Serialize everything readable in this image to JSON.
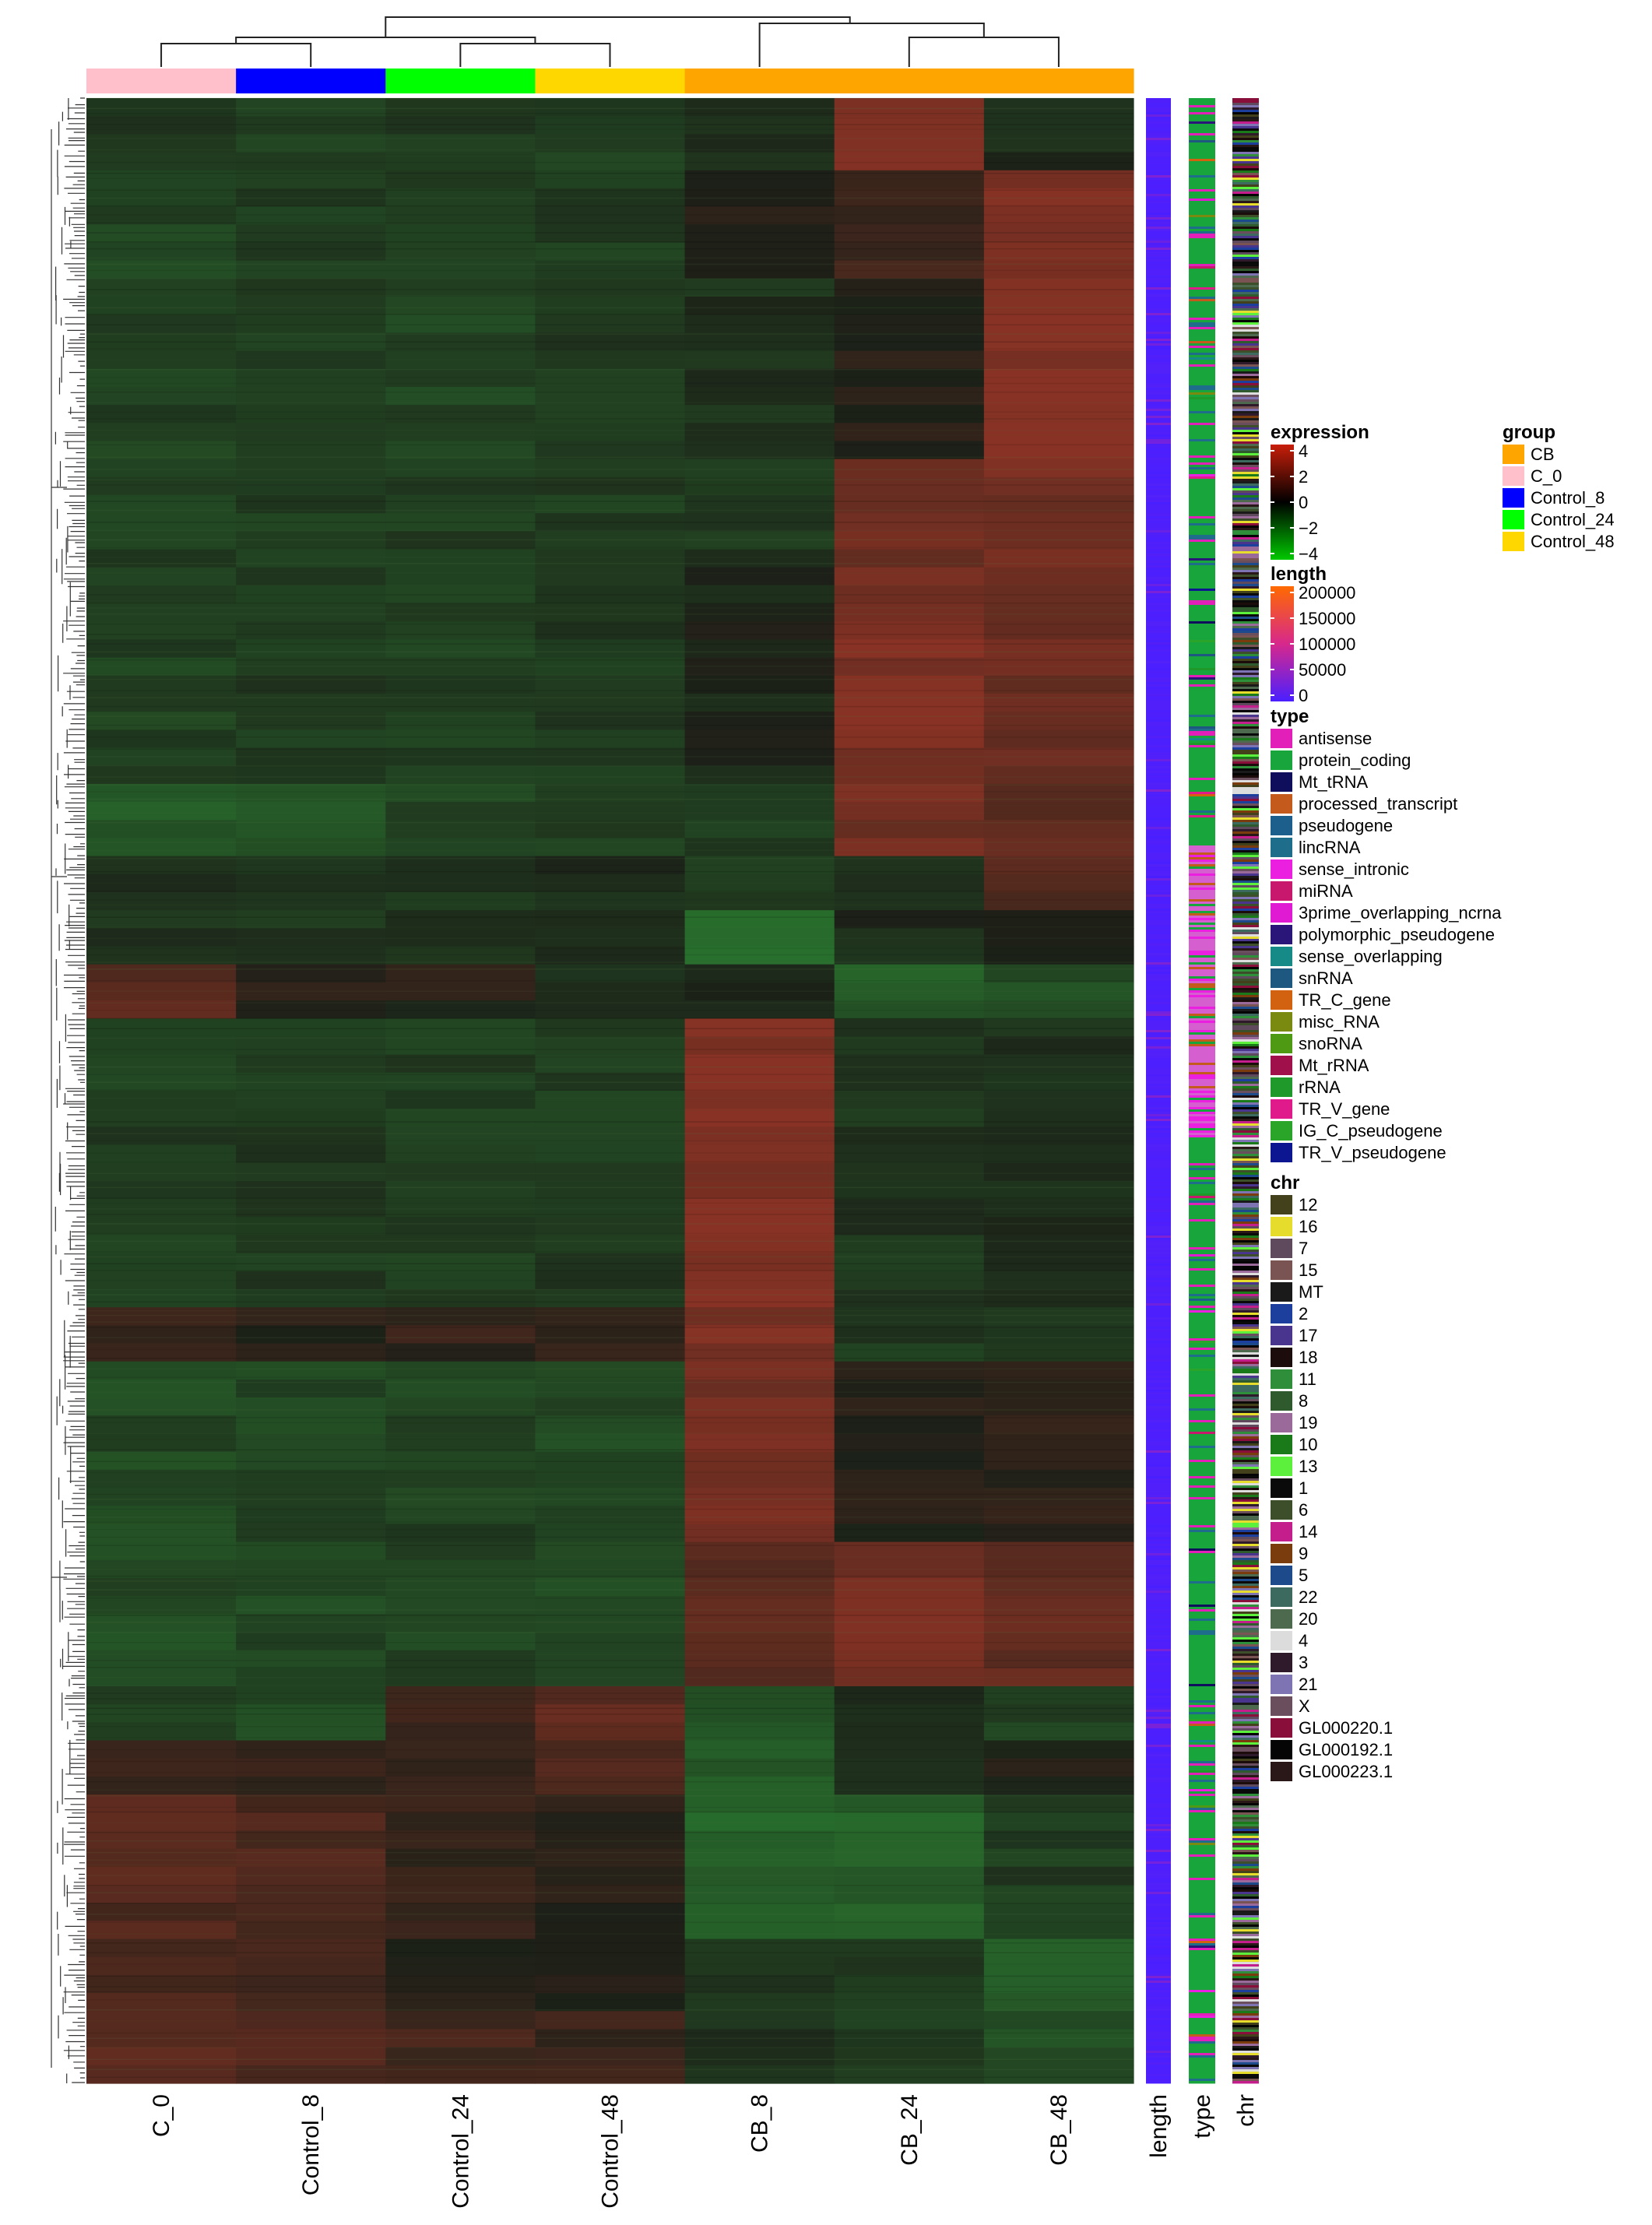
{
  "chart_data": {
    "type": "heatmap",
    "title": "",
    "columns": [
      "C_0",
      "Control_8",
      "Control_24",
      "Control_48",
      "CB_8",
      "CB_24",
      "CB_48"
    ],
    "column_groups": [
      "C_0",
      "Control_8",
      "Control_24",
      "Control_48",
      "CB",
      "CB",
      "CB"
    ],
    "row_dendrogram": true,
    "column_dendrogram": true,
    "blocks": [
      {
        "rows": 4,
        "values": [
          -1.0,
          -1.2,
          -1.0,
          -1.3,
          -0.6,
          2.5,
          -0.4
        ]
      },
      {
        "rows": 6,
        "values": [
          -1.3,
          -1.2,
          -1.2,
          -1.0,
          0.3,
          1.0,
          2.6
        ]
      },
      {
        "rows": 10,
        "values": [
          -1.3,
          -1.2,
          -1.3,
          -1.1,
          -0.6,
          0.2,
          2.9
        ]
      },
      {
        "rows": 6,
        "values": [
          -1.2,
          -1.1,
          -1.1,
          -1.0,
          -0.9,
          2.2,
          2.4
        ]
      },
      {
        "rows": 12,
        "values": [
          -1.2,
          -1.1,
          -1.1,
          -1.0,
          -0.2,
          2.6,
          2.1
        ]
      },
      {
        "rows": 4,
        "values": [
          -2.1,
          -2.0,
          -1.3,
          -1.0,
          -1.2,
          2.4,
          1.9
        ]
      },
      {
        "rows": 3,
        "values": [
          -0.5,
          -0.6,
          -0.7,
          -0.5,
          -1.2,
          -0.7,
          1.4
        ]
      },
      {
        "rows": 3,
        "values": [
          -0.6,
          -0.8,
          -0.9,
          -0.7,
          -3.0,
          -0.4,
          -0.2
        ]
      },
      {
        "rows": 3,
        "values": [
          1.8,
          0.5,
          0.2,
          -0.7,
          -0.3,
          -2.2,
          -1.8
        ]
      },
      {
        "rows": 16,
        "values": [
          -1.1,
          -1.0,
          -1.1,
          -1.0,
          2.9,
          -0.8,
          -0.6
        ]
      },
      {
        "rows": 3,
        "values": [
          0.6,
          0.4,
          0.6,
          0.4,
          2.7,
          -0.9,
          -0.8
        ]
      },
      {
        "rows": 10,
        "values": [
          -1.5,
          -1.4,
          -1.3,
          -1.6,
          2.6,
          0.2,
          0.5
        ]
      },
      {
        "rows": 8,
        "values": [
          -1.6,
          -1.5,
          -1.4,
          -1.5,
          1.6,
          2.4,
          1.9
        ]
      },
      {
        "rows": 3,
        "values": [
          -1.4,
          -1.5,
          0.9,
          1.8,
          -2.2,
          -0.4,
          -1.2
        ]
      },
      {
        "rows": 3,
        "values": [
          0.8,
          0.6,
          0.9,
          1.5,
          -2.4,
          -0.9,
          0.2
        ]
      },
      {
        "rows": 8,
        "values": [
          1.5,
          1.3,
          0.6,
          0.4,
          -2.5,
          -2.4,
          -1.0
        ]
      },
      {
        "rows": 4,
        "values": [
          1.2,
          1.1,
          0.4,
          0.3,
          -1.0,
          -0.8,
          -2.5
        ]
      },
      {
        "rows": 4,
        "values": [
          2.0,
          1.6,
          1.2,
          0.8,
          -0.5,
          -1.2,
          -1.7
        ]
      }
    ],
    "legends": {
      "expression": {
        "title": "expression",
        "ticks": [
          "4",
          "2",
          "0",
          "−2",
          "−4"
        ],
        "range": [
          -4,
          4
        ],
        "colors": [
          "#00c800",
          "#000000",
          "#c81e0a"
        ]
      },
      "length": {
        "title": "length",
        "ticks": [
          "200000",
          "150000",
          "100000",
          "50000",
          "0"
        ],
        "range": [
          0,
          200000
        ],
        "colors": [
          "#4a1fff",
          "#d7288c",
          "#ff6a00"
        ]
      },
      "type": {
        "title": "type",
        "items": [
          {
            "label": "antisense",
            "color": "#e21fb8"
          },
          {
            "label": "protein_coding",
            "color": "#17a53c"
          },
          {
            "label": "Mt_tRNA",
            "color": "#0e0e5c"
          },
          {
            "label": "processed_transcript",
            "color": "#c45a1c"
          },
          {
            "label": "pseudogene",
            "color": "#1d5f8c"
          },
          {
            "label": "lincRNA",
            "color": "#1e6d8a"
          },
          {
            "label": "sense_intronic",
            "color": "#ea1fe0"
          },
          {
            "label": "miRNA",
            "color": "#c8186e"
          },
          {
            "label": "3prime_overlapping_ncrna",
            "color": "#e01ad2"
          },
          {
            "label": "polymorphic_pseudogene",
            "color": "#2a1578"
          },
          {
            "label": "sense_overlapping",
            "color": "#168a87"
          },
          {
            "label": "snRNA",
            "color": "#1e5880"
          },
          {
            "label": "TR_C_gene",
            "color": "#d2620f"
          },
          {
            "label": "misc_RNA",
            "color": "#7a8a10"
          },
          {
            "label": "snoRNA",
            "color": "#4e9a12"
          },
          {
            "label": "Mt_rRNA",
            "color": "#a0104a"
          },
          {
            "label": "rRNA",
            "color": "#1f9a2a"
          },
          {
            "label": "TR_V_gene",
            "color": "#e01a8a"
          },
          {
            "label": "IG_C_pseudogene",
            "color": "#2aa52a"
          },
          {
            "label": "TR_V_pseudogene",
            "color": "#0c1690"
          }
        ]
      },
      "chr": {
        "title": "chr",
        "items": [
          {
            "label": "12",
            "color": "#43401c"
          },
          {
            "label": "16",
            "color": "#e6dc2c"
          },
          {
            "label": "7",
            "color": "#5e4a5c"
          },
          {
            "label": "15",
            "color": "#7a5452"
          },
          {
            "label": "MT",
            "color": "#1a1a1a"
          },
          {
            "label": "2",
            "color": "#1c3e9c"
          },
          {
            "label": "17",
            "color": "#4a358e"
          },
          {
            "label": "18",
            "color": "#1c0c0c"
          },
          {
            "label": "11",
            "color": "#2e8e3a"
          },
          {
            "label": "8",
            "color": "#2e5a2e"
          },
          {
            "label": "19",
            "color": "#9a6a9a"
          },
          {
            "label": "10",
            "color": "#1a7a1a"
          },
          {
            "label": "13",
            "color": "#5cf03c"
          },
          {
            "label": "1",
            "color": "#0a0a0a"
          },
          {
            "label": "6",
            "color": "#3c4e2a"
          },
          {
            "label": "14",
            "color": "#c41e8c"
          },
          {
            "label": "9",
            "color": "#7a3c0c"
          },
          {
            "label": "5",
            "color": "#1c4a8a"
          },
          {
            "label": "22",
            "color": "#3c6a5e"
          },
          {
            "label": "20",
            "color": "#4e6a4e"
          },
          {
            "label": "4",
            "color": "#dcdcdc"
          },
          {
            "label": "3",
            "color": "#2e1a2a"
          },
          {
            "label": "21",
            "color": "#7e74b4"
          },
          {
            "label": "X",
            "color": "#6a4e5e"
          },
          {
            "label": "GL000220.1",
            "color": "#8a0e3a"
          },
          {
            "label": "GL000192.1",
            "color": "#050505"
          },
          {
            "label": "GL000223.1",
            "color": "#2a1818"
          }
        ]
      },
      "group": {
        "title": "group",
        "items": [
          {
            "label": "CB",
            "color": "#ffa500"
          },
          {
            "label": "C_0",
            "color": "#ffc0cb"
          },
          {
            "label": "Control_8",
            "color": "#0000ff"
          },
          {
            "label": "Control_24",
            "color": "#00ff00"
          },
          {
            "label": "Control_48",
            "color": "#ffd700"
          }
        ]
      }
    },
    "annotation_tracks": [
      "length",
      "type",
      "chr"
    ]
  }
}
